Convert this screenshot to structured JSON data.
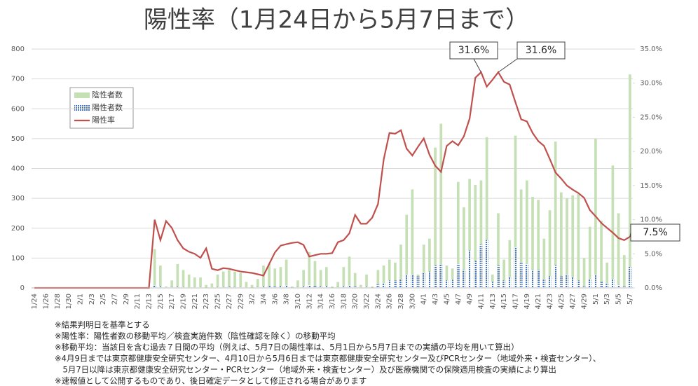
{
  "chart_data": {
    "type": "bar-line",
    "title": "陽性率（1月24日から5月7日まで）",
    "categories": [
      "1/24",
      null,
      "1/26",
      null,
      "1/28",
      null,
      "1/30",
      null,
      "2/1",
      null,
      "2/3",
      null,
      "2/5",
      null,
      "2/7",
      null,
      "2/9",
      null,
      "2/11",
      null,
      "2/13",
      null,
      "2/15",
      null,
      "2/17",
      null,
      "2/19",
      null,
      "2/21",
      null,
      "2/23",
      null,
      "2/25",
      null,
      "2/27",
      null,
      "2/29",
      null,
      "3/2",
      null,
      "3/4",
      null,
      "3/6",
      null,
      "3/8",
      null,
      "3/10",
      null,
      "3/12",
      null,
      "3/14",
      null,
      "3/16",
      null,
      "3/18",
      null,
      "3/20",
      null,
      "3/22",
      null,
      "3/24",
      null,
      "3/26",
      null,
      "3/28",
      null,
      "3/30",
      null,
      "4/1",
      null,
      "4/3",
      null,
      "4/5",
      null,
      "4/7",
      null,
      "4/9",
      null,
      "4/11",
      null,
      "4/13",
      null,
      "4/15",
      null,
      "4/17",
      null,
      "4/19",
      null,
      "4/21",
      null,
      "4/23",
      null,
      "4/25",
      null,
      "4/27",
      null,
      "4/29",
      null,
      "5/1",
      null,
      "5/3",
      null,
      "5/5",
      null,
      "5/7"
    ],
    "series": [
      {
        "name": "陰性者数",
        "color": "#c5e0b4",
        "values": [
          0,
          0,
          0,
          0,
          0,
          0,
          0,
          0,
          0,
          0,
          0,
          0,
          0,
          0,
          0,
          0,
          0,
          0,
          0,
          0,
          0,
          130,
          75,
          5,
          25,
          80,
          60,
          45,
          35,
          35,
          10,
          15,
          45,
          55,
          60,
          55,
          50,
          20,
          10,
          30,
          75,
          80,
          65,
          70,
          95,
          5,
          25,
          60,
          120,
          90,
          60,
          70,
          5,
          20,
          70,
          105,
          50,
          10,
          45,
          5,
          60,
          75,
          95,
          85,
          145,
          245,
          330,
          45,
          145,
          165,
          470,
          550,
          75,
          65,
          355,
          270,
          365,
          345,
          360,
          505,
          45,
          250,
          95,
          160,
          510,
          330,
          360,
          305,
          295,
          165,
          260,
          490,
          320,
          300,
          310,
          315,
          100,
          205,
          500,
          225,
          85,
          410,
          250,
          110,
          715
        ]
      },
      {
        "name": "陽性者数",
        "color": "#4472c4",
        "values": [
          0,
          0,
          0,
          0,
          0,
          0,
          0,
          0,
          0,
          0,
          0,
          0,
          0,
          0,
          0,
          0,
          0,
          0,
          0,
          0,
          0,
          8,
          5,
          2,
          3,
          4,
          3,
          2,
          2,
          3,
          1,
          2,
          3,
          3,
          4,
          3,
          3,
          2,
          1,
          3,
          5,
          6,
          5,
          6,
          8,
          1,
          3,
          5,
          9,
          7,
          5,
          6,
          1,
          3,
          5,
          8,
          5,
          2,
          4,
          1,
          12,
          15,
          25,
          25,
          30,
          45,
          45,
          40,
          50,
          55,
          75,
          78,
          25,
          30,
          80,
          60,
          125,
          90,
          145,
          160,
          20,
          75,
          25,
          35,
          135,
          85,
          80,
          60,
          60,
          30,
          40,
          75,
          40,
          45,
          35,
          25,
          5,
          30,
          45,
          20,
          15,
          30,
          10,
          5,
          70
        ]
      },
      {
        "name": "陽性率",
        "color": "#c0504d",
        "axis": "y2",
        "values": [
          0,
          0,
          0,
          0,
          0,
          0,
          0,
          0,
          0,
          0,
          0,
          0,
          0,
          0,
          0,
          0,
          0,
          0,
          0,
          0,
          0,
          10.0,
          7.0,
          9.8,
          8.8,
          7.0,
          5.8,
          5.3,
          5.0,
          4.4,
          5.8,
          2.8,
          2.6,
          2.9,
          2.8,
          2.6,
          2.4,
          2.3,
          2.2,
          2.0,
          1.8,
          3.5,
          5.2,
          6.2,
          6.4,
          6.6,
          6.7,
          6.3,
          4.6,
          4.8,
          5.0,
          5.0,
          5.1,
          6.7,
          7.0,
          8.0,
          10.7,
          9.4,
          9.4,
          10.3,
          12.3,
          18.8,
          22.7,
          22.6,
          23.1,
          20.4,
          19.4,
          20.7,
          21.9,
          19.5,
          17.9,
          17.0,
          20.8,
          21.5,
          20.9,
          22.2,
          24.8,
          30.8,
          31.6,
          29.5,
          30.5,
          31.6,
          30.2,
          29.8,
          27.2,
          24.7,
          24.4,
          22.7,
          21.5,
          20.8,
          18.9,
          16.9,
          16.0,
          15.0,
          14.4,
          13.9,
          13.2,
          11.4,
          10.5,
          9.5,
          8.8,
          8.1,
          7.3,
          7.0,
          7.5
        ]
      }
    ],
    "ylim": [
      0,
      800
    ],
    "yticks": [
      0,
      100,
      200,
      300,
      400,
      500,
      600,
      700,
      800
    ],
    "y2lim": [
      0,
      35
    ],
    "y2ticks": [
      {
        "value": 0,
        "label": "0.0%"
      },
      {
        "value": 5,
        "label": "5.0%"
      },
      {
        "value": 10,
        "label": "10.0%"
      },
      {
        "value": 15,
        "label": "15.0%"
      },
      {
        "value": 20,
        "label": "20.0%"
      },
      {
        "value": 25,
        "label": "25.0%"
      },
      {
        "value": 30,
        "label": "30.0%"
      },
      {
        "value": 35,
        "label": "35.0%"
      }
    ],
    "grid": true,
    "annotations": [
      "31.6%",
      "31.6%",
      "7.5%"
    ],
    "notes": [
      "※結果判明日を基準とする",
      "※陽性率：陽性者数の移動平均／検査実施件数（陰性確認を除く）の移動平均",
      "※移動平均：当該日を含む過去７日間の平均（例えば、5月7日の陽性率は、5月1日から5月7日までの実績の平均を用いて算出）",
      "※4月9日までは東京都健康安全研究センター、4月10日から5月6日までは東京都健康安全研究センター及びPCRセンター（地域外来・検査センター）、",
      "　5月7日以降は東京都健康安全研究センター・PCRセンター（地域外来・検査センター）及び医療機関での保険適用検査の実績により算出",
      "※速報値として公開するものであり、後日確定データとして修正される場合があります"
    ]
  }
}
